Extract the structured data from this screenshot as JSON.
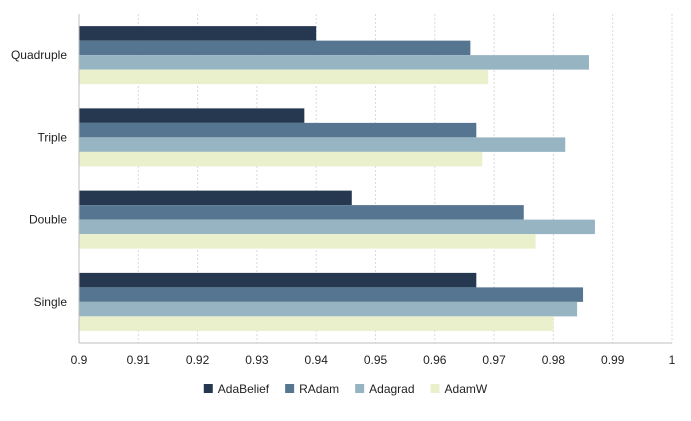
{
  "chart_data": {
    "type": "bar",
    "orientation": "horizontal",
    "categories": [
      "Quadruple",
      "Triple",
      "Double",
      "Single"
    ],
    "series": [
      {
        "name": "AdaBelief",
        "color": "#253850",
        "values": [
          0.94,
          0.938,
          0.946,
          0.967
        ]
      },
      {
        "name": "RAdam",
        "color": "#557590",
        "values": [
          0.966,
          0.967,
          0.975,
          0.985
        ]
      },
      {
        "name": "Adagrad",
        "color": "#96b4c2",
        "values": [
          0.986,
          0.982,
          0.987,
          0.984
        ]
      },
      {
        "name": "AdamW",
        "color": "#eaefcc",
        "values": [
          0.969,
          0.968,
          0.977,
          0.98
        ]
      }
    ],
    "xlim": [
      0.9,
      1.0
    ],
    "xticks": [
      "0.9",
      "0.91",
      "0.92",
      "0.93",
      "0.94",
      "0.95",
      "0.96",
      "0.97",
      "0.98",
      "0.99",
      "1"
    ],
    "grid": "vertical dashed",
    "legend_position": "bottom",
    "title": "",
    "xlabel": "",
    "ylabel": ""
  }
}
